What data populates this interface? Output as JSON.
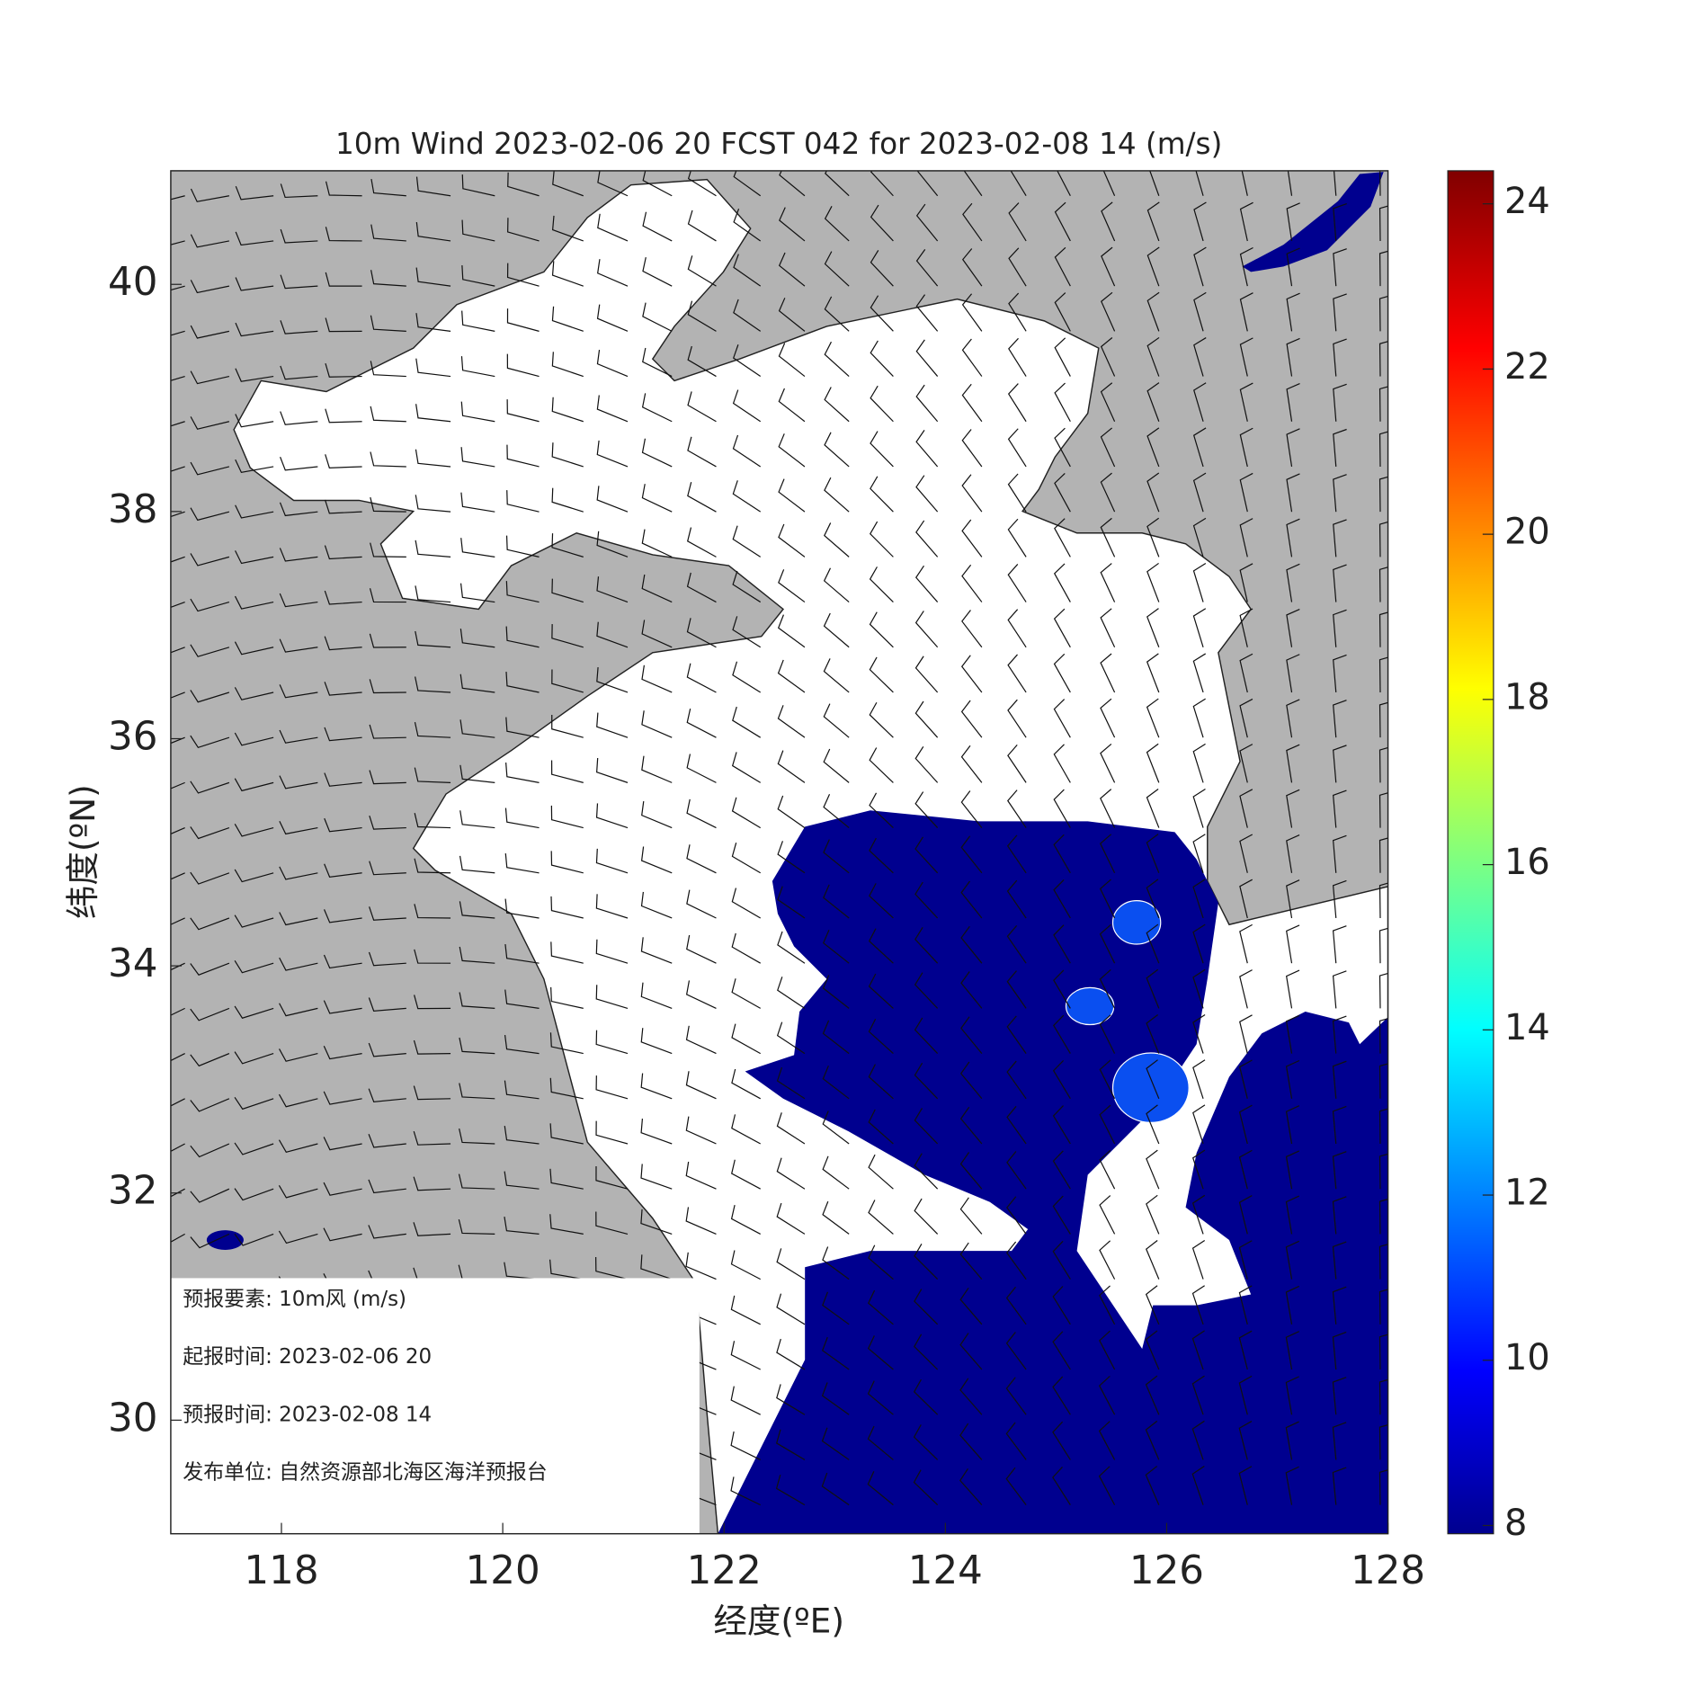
{
  "map": {
    "title": "10m Wind 2023-02-06 20 FCST 042 for 2023-02-08 14 (m/s)",
    "xlabel": "经度(ºE)",
    "ylabel": "纬度(ºN)",
    "xlim": [
      117,
      128
    ],
    "ylim": [
      29,
      41
    ],
    "xticks": [
      118,
      120,
      122,
      124,
      126,
      128
    ],
    "yticks": [
      30,
      32,
      34,
      36,
      38,
      40
    ],
    "colorbar": {
      "lim": [
        7.9,
        24.4
      ],
      "ticks": [
        8,
        10,
        12,
        14,
        16,
        18,
        20,
        22,
        24
      ]
    }
  },
  "info": [
    "预报要素:  10m风  (m/s)",
    "起报时间: 2023-02-06 20",
    "预报时间: 2023-02-08 14",
    "发布单位:  自然资源部北海区海洋预报台"
  ]
}
